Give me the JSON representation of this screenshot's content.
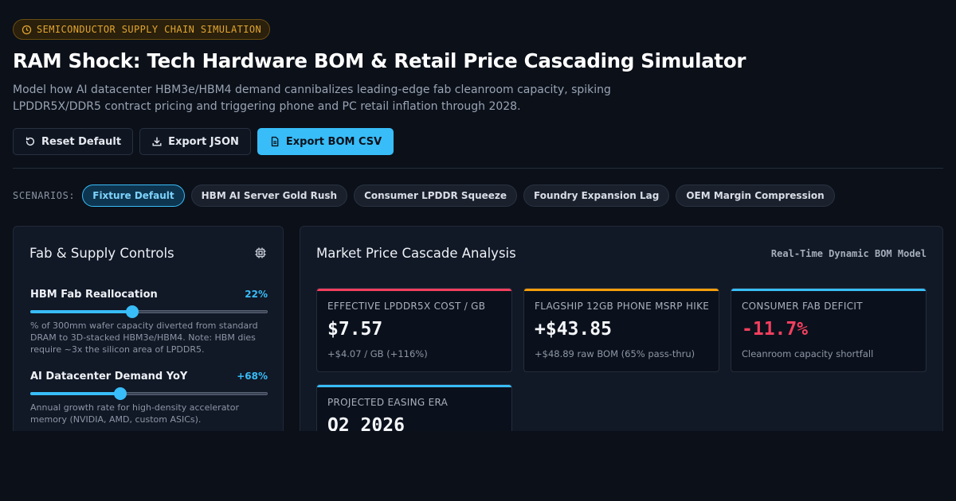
{
  "header": {
    "badge": "SEMICONDUCTOR SUPPLY CHAIN SIMULATION",
    "title": "RAM Shock: Tech Hardware BOM & Retail Price Cascading Simulator",
    "subtitle": "Model how AI datacenter HBM3e/HBM4 demand cannibalizes leading-edge fab cleanroom capacity, spiking LPDDR5X/DDR5 contract pricing and triggering phone and PC retail inflation through 2028."
  },
  "actions": {
    "reset": "Reset Default",
    "export_json": "Export JSON",
    "export_csv": "Export BOM CSV"
  },
  "scenarios": {
    "label": "SCENARIOS:",
    "items": [
      {
        "label": "Fixture Default",
        "active": true
      },
      {
        "label": "HBM AI Server Gold Rush",
        "active": false
      },
      {
        "label": "Consumer LPDDR Squeeze",
        "active": false
      },
      {
        "label": "Foundry Expansion Lag",
        "active": false
      },
      {
        "label": "OEM Margin Compression",
        "active": false
      }
    ]
  },
  "controls": {
    "title": "Fab & Supply Controls",
    "icon": "cpu-icon",
    "sliders": [
      {
        "label": "HBM Fab Reallocation",
        "value_text": "22%",
        "fraction": 0.43,
        "description": "% of 300mm wafer capacity diverted from standard DRAM to 3D-stacked HBM3e/HBM4. Note: HBM dies require ~3x the silicon area of LPDDR5."
      },
      {
        "label": "AI Datacenter Demand YoY",
        "value_text": "+68%",
        "fraction": 0.38,
        "description": "Annual growth rate for high-density accelerator memory (NVIDIA, AMD, custom ASICs)."
      }
    ]
  },
  "analysis": {
    "title": "Market Price Cascade Analysis",
    "mode": "Real-Time Dynamic BOM Model",
    "cards": [
      {
        "label": "EFFECTIVE LPDDR5X COST / GB",
        "value": "$7.57",
        "sub": "+$4.07 / GB (+116%)",
        "accent": "#f43f5e",
        "value_color": "default"
      },
      {
        "label": "FLAGSHIP 12GB PHONE MSRP HIKE",
        "value": "+$43.85",
        "sub": "+$48.89 raw BOM (65% pass-thru)",
        "accent": "#f59e0b",
        "value_color": "default"
      },
      {
        "label": "CONSUMER FAB DEFICIT",
        "value": "-11.7%",
        "sub": "Cleanroom capacity shortfall",
        "accent": "#38bdf8",
        "value_color": "red"
      },
      {
        "label": "PROJECTED EASING ERA",
        "value": "Q2 2026",
        "sub": "",
        "accent": "#38bdf8",
        "value_color": "default"
      }
    ]
  }
}
